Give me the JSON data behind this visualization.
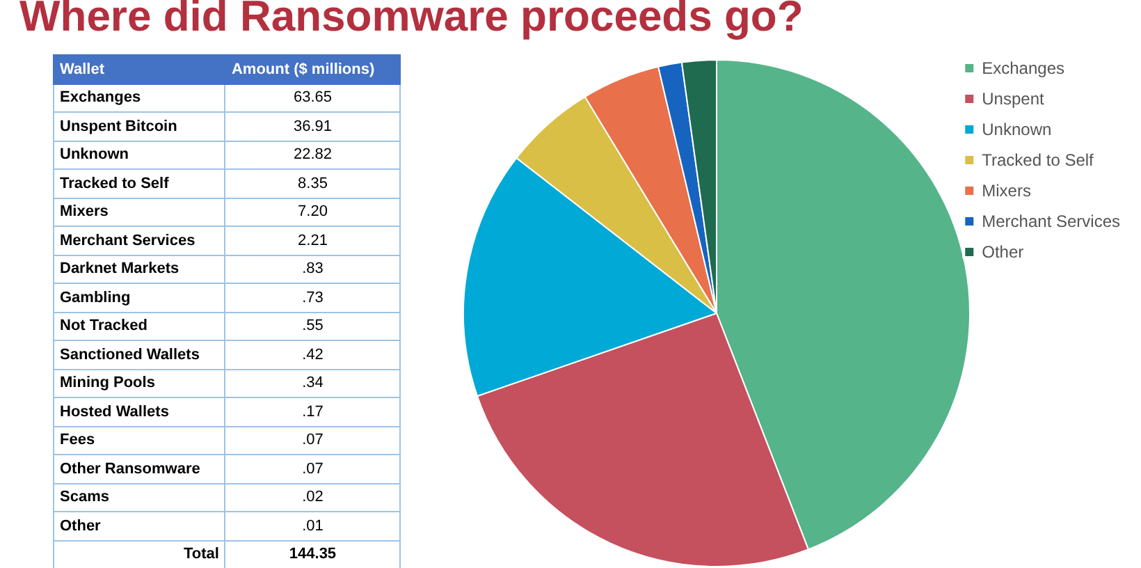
{
  "chart_data": [
    {
      "type": "other",
      "title": "Where did Ransomware proceeds go?",
      "xlabel": "Wallet",
      "ylabel": "Amount ($ millions)",
      "categories": [
        "Exchanges",
        "Unspent Bitcoin",
        "Unknown",
        "Tracked to Self",
        "Mixers",
        "Merchant Services",
        "Darknet Markets",
        "Gambling",
        "Not Tracked",
        "Sanctioned Wallets",
        "Mining Pools",
        "Hosted Wallets",
        "Fees",
        "Other Ransomware",
        "Scams",
        "Other"
      ],
      "values": [
        63.65,
        36.91,
        22.82,
        8.35,
        7.2,
        2.21,
        0.83,
        0.73,
        0.55,
        0.42,
        0.34,
        0.17,
        0.07,
        0.07,
        0.02,
        0.01
      ],
      "value_labels": [
        "63.65",
        "36.91",
        "22.82",
        "8.35",
        "7.20",
        "2.21",
        ".83",
        ".73",
        ".55",
        ".42",
        ".34",
        ".17",
        ".07",
        ".07",
        ".02",
        ".01"
      ],
      "annotations": [
        "Total"
      ],
      "totals": [
        "144.35"
      ]
    },
    {
      "type": "pie",
      "categories": [
        "Exchanges",
        "Unspent",
        "Unknown",
        "Tracked to Self",
        "Mixers",
        "Merchant Services",
        "Other"
      ],
      "values": [
        44.1,
        25.6,
        15.8,
        5.8,
        5.0,
        1.5,
        2.2
      ],
      "colors": [
        "#55b48a",
        "#c5505e",
        "#00a9d6",
        "#d9bf45",
        "#e8704a",
        "#1664c0",
        "#1e6b4f"
      ],
      "legend": "top right"
    }
  ]
}
